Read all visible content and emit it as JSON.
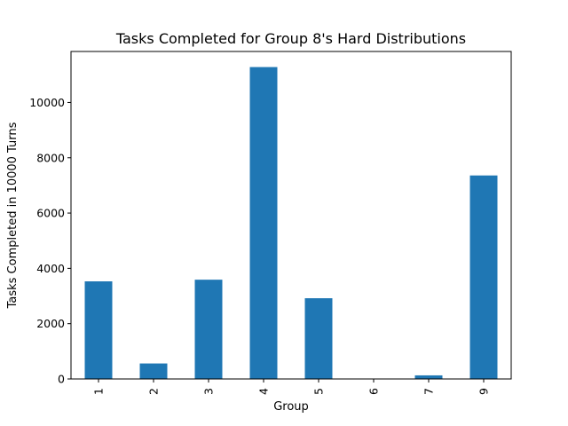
{
  "chart_data": {
    "type": "bar",
    "title": "Tasks Completed for Group 8's Hard Distributions",
    "xlabel": "Group",
    "ylabel": "Tasks Completed in 10000 Turns",
    "categories": [
      "1",
      "2",
      "3",
      "4",
      "5",
      "6",
      "7",
      "9"
    ],
    "values": [
      3530,
      560,
      3590,
      11280,
      2920,
      0,
      130,
      7360
    ],
    "ylim": [
      0,
      11844
    ],
    "yticks": [
      0,
      2000,
      4000,
      6000,
      8000,
      10000
    ],
    "x_tick_rotation": 90,
    "grid": false,
    "legend": "none",
    "bar_color": "#1f77b4"
  }
}
